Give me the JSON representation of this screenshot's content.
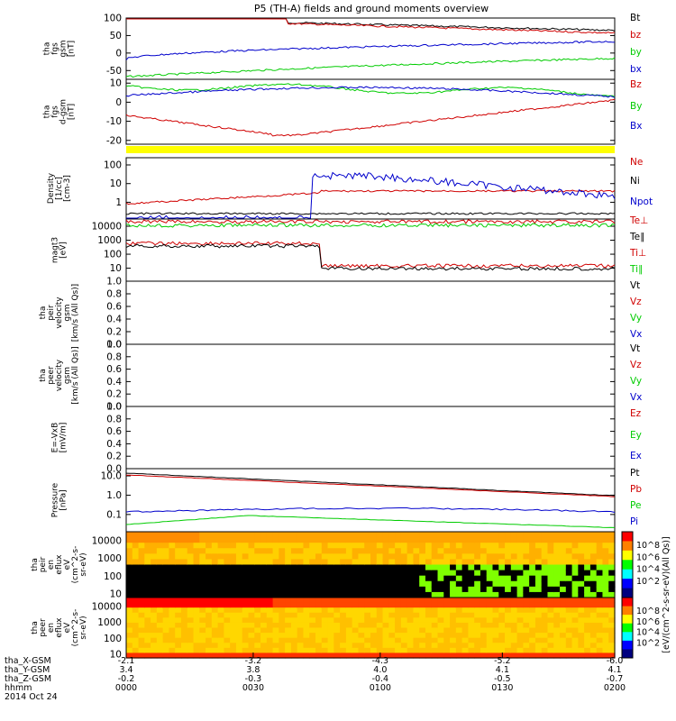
{
  "title": "P5 (TH-A) fields and ground moments overview",
  "colors": {
    "black": "#000000",
    "red": "#d00000",
    "green": "#00cc00",
    "blue": "#0000cc",
    "yellow": "#ffff00"
  },
  "chart_data": [
    {
      "id": "fgs_gsm",
      "type": "line",
      "ylabel": [
        "tha",
        "fgs",
        "gsm",
        "[nT]"
      ],
      "ylim": [
        -75,
        100
      ],
      "yticks": [
        100,
        50,
        0,
        -50
      ],
      "series": [
        {
          "name": "Bt",
          "color": "black"
        },
        {
          "name": "bz",
          "color": "red"
        },
        {
          "name": "by",
          "color": "green"
        },
        {
          "name": "bx",
          "color": "blue"
        }
      ]
    },
    {
      "id": "fgs_dgsm",
      "type": "line",
      "ylabel": [
        "tha",
        "fgs",
        "d-gsm",
        "[nT]"
      ],
      "ylim": [
        -22,
        12
      ],
      "yticks": [
        10,
        0,
        -10,
        -20
      ],
      "series": [
        {
          "name": "Bz",
          "color": "red"
        },
        {
          "name": "By",
          "color": "green"
        },
        {
          "name": "Bx",
          "color": "blue"
        }
      ]
    },
    {
      "id": "density",
      "type": "line",
      "ylabel": [
        "Density",
        "[1/cc]",
        "[cm-3]"
      ],
      "scale": "log",
      "yticks": [
        "100",
        "10",
        "1"
      ],
      "series": [
        {
          "name": "Ne",
          "color": "red"
        },
        {
          "name": "Ni",
          "color": "black"
        },
        {
          "name": "Npot",
          "color": "blue"
        }
      ]
    },
    {
      "id": "temperature",
      "type": "line",
      "ylabel": [
        "magt3",
        "[eV]"
      ],
      "scale": "log",
      "yticks": [
        "10000",
        "1000",
        "100",
        "10"
      ],
      "series": [
        {
          "name": "Te⊥",
          "color": "red"
        },
        {
          "name": "Te∥",
          "color": "black"
        },
        {
          "name": "Ti⊥",
          "color": "red"
        },
        {
          "name": "Ti∥",
          "color": "green"
        }
      ]
    },
    {
      "id": "peir_velocity",
      "type": "line",
      "ylabel": [
        "tha",
        "peir",
        "velocity",
        "gsm",
        "[km/s (All Qs)]"
      ],
      "ylim": [
        0,
        1
      ],
      "yticks": [
        "1.0",
        "0.8",
        "0.6",
        "0.4",
        "0.2",
        "0.0"
      ],
      "series": [
        {
          "name": "Vt",
          "color": "black"
        },
        {
          "name": "Vz",
          "color": "red"
        },
        {
          "name": "Vy",
          "color": "green"
        },
        {
          "name": "Vx",
          "color": "blue"
        }
      ]
    },
    {
      "id": "peer_velocity",
      "type": "line",
      "ylabel": [
        "tha",
        "peer",
        "velocity",
        "gsm",
        "[km/s (All Qs)]"
      ],
      "ylim": [
        0,
        1
      ],
      "yticks": [
        "1.0",
        "0.8",
        "0.6",
        "0.4",
        "0.2",
        "0.0"
      ],
      "series": [
        {
          "name": "Vt",
          "color": "black"
        },
        {
          "name": "Vz",
          "color": "red"
        },
        {
          "name": "Vy",
          "color": "green"
        },
        {
          "name": "Vx",
          "color": "blue"
        }
      ]
    },
    {
      "id": "efield",
      "type": "line",
      "ylabel": [
        "E=-VxB",
        "[mV/m]"
      ],
      "ylim": [
        0,
        1
      ],
      "yticks": [
        "1.0",
        "0.8",
        "0.6",
        "0.4",
        "0.2",
        "0.0"
      ],
      "series": [
        {
          "name": "Ez",
          "color": "red"
        },
        {
          "name": "Ey",
          "color": "green"
        },
        {
          "name": "Ex",
          "color": "blue"
        }
      ]
    },
    {
      "id": "pressure",
      "type": "line",
      "ylabel": [
        "Pressure",
        "[nPa]"
      ],
      "scale": "log",
      "yticks": [
        "10.0",
        "1.0",
        "0.1"
      ],
      "series": [
        {
          "name": "Pt",
          "color": "black"
        },
        {
          "name": "Pb",
          "color": "red"
        },
        {
          "name": "Pe",
          "color": "green"
        },
        {
          "name": "Pi",
          "color": "blue"
        }
      ]
    },
    {
      "id": "peir_spec",
      "type": "heatmap",
      "ylabel": [
        "tha",
        "peir",
        "en",
        "eflux",
        "eV",
        "(cm^2-s-",
        "sr-eV)"
      ],
      "yticks": [
        "10000",
        "1000",
        "100",
        "10"
      ]
    },
    {
      "id": "peer_spec",
      "type": "heatmap",
      "ylabel": [
        "tha",
        "peer",
        "en",
        "eflux",
        "eV",
        "(cm^2-s-",
        "sr-eV)"
      ],
      "yticks": [
        "10000",
        "1000",
        "100",
        "10"
      ]
    }
  ],
  "colorbar": {
    "label": "[eV/(cm^2-s-sr-eV)(All Qs)]",
    "ticks_top": [
      "10^8",
      "10^6",
      "10^4",
      "10^2"
    ],
    "ticks_bottom": [
      "10^8",
      "10^6",
      "10^4",
      "10^2"
    ]
  },
  "axis": {
    "rows": [
      {
        "name": "tha_X-GSM",
        "values": [
          "-2.1",
          "-3.2",
          "-4.3",
          "-5.2",
          "-6.0"
        ]
      },
      {
        "name": "tha_Y-GSM",
        "values": [
          "3.4",
          "3.8",
          "4.0",
          "4.1",
          "4.1"
        ]
      },
      {
        "name": "tha_Z-GSM",
        "values": [
          "-0.2",
          "-0.3",
          "-0.4",
          "-0.5",
          "-0.7"
        ]
      },
      {
        "name": "hhmm",
        "values": [
          "0000",
          "0030",
          "0100",
          "0130",
          "0200"
        ]
      }
    ],
    "date": "2014 Oct 24"
  }
}
